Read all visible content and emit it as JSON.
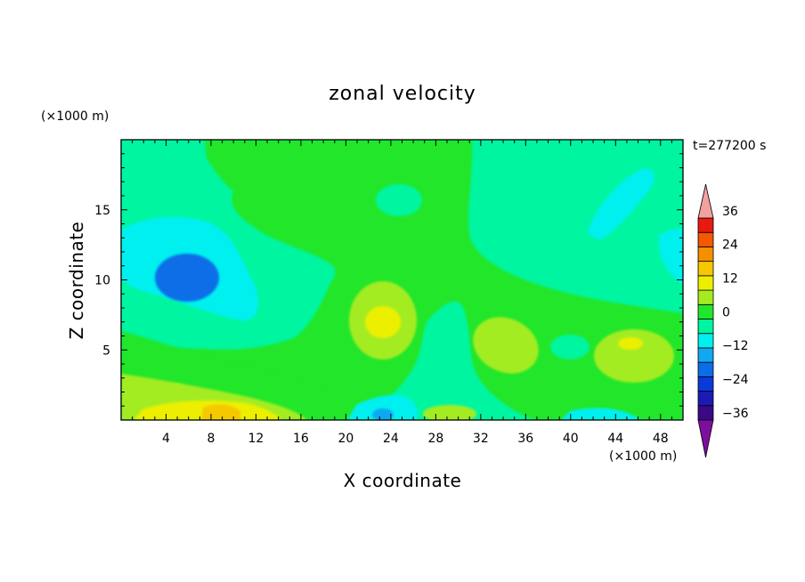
{
  "chart_data": {
    "type": "heatmap",
    "title": "zonal velocity",
    "xlabel": "X coordinate",
    "ylabel": "Z coordinate",
    "x_unit": "(×1000 m)",
    "y_unit": "(×1000 m)",
    "time_label": "t=277200 s",
    "xlim": [
      0,
      50
    ],
    "ylim": [
      0,
      20
    ],
    "x_ticks": [
      4,
      8,
      12,
      16,
      20,
      24,
      28,
      32,
      36,
      40,
      44,
      48
    ],
    "y_ticks": [
      5,
      10,
      15
    ],
    "colorbar": {
      "labels": [
        36,
        24,
        12,
        0,
        -12,
        -24,
        -36
      ],
      "levels": [
        -42,
        -36,
        -30,
        -24,
        -18,
        -12,
        -6,
        0,
        6,
        12,
        18,
        24,
        30,
        36,
        42
      ],
      "colors": [
        "#7d0f9c",
        "#3a0a86",
        "#1d1ab4",
        "#0b3adc",
        "#0a6ee8",
        "#10a8f0",
        "#00f0f0",
        "#00f5a0",
        "#22e62b",
        "#a4ec20",
        "#ecf000",
        "#f5c800",
        "#f78e00",
        "#f45800",
        "#e81a10",
        "#f2a0a0"
      ]
    },
    "features": [
      {
        "type": "max",
        "x": 6,
        "z": 10.5,
        "value": -16
      },
      {
        "type": "max",
        "x": 23,
        "z": 0.5,
        "value": -14
      },
      {
        "type": "max",
        "x": 8.5,
        "z": 1.2,
        "value": 13
      },
      {
        "type": "max",
        "x": 24,
        "z": 7.5,
        "value": 12
      },
      {
        "type": "max",
        "x": 34,
        "z": 6,
        "value": 8
      },
      {
        "type": "max",
        "x": 45,
        "z": 5.5,
        "value": 9
      },
      {
        "type": "max",
        "x": 30,
        "z": 1,
        "value": 7
      }
    ]
  }
}
